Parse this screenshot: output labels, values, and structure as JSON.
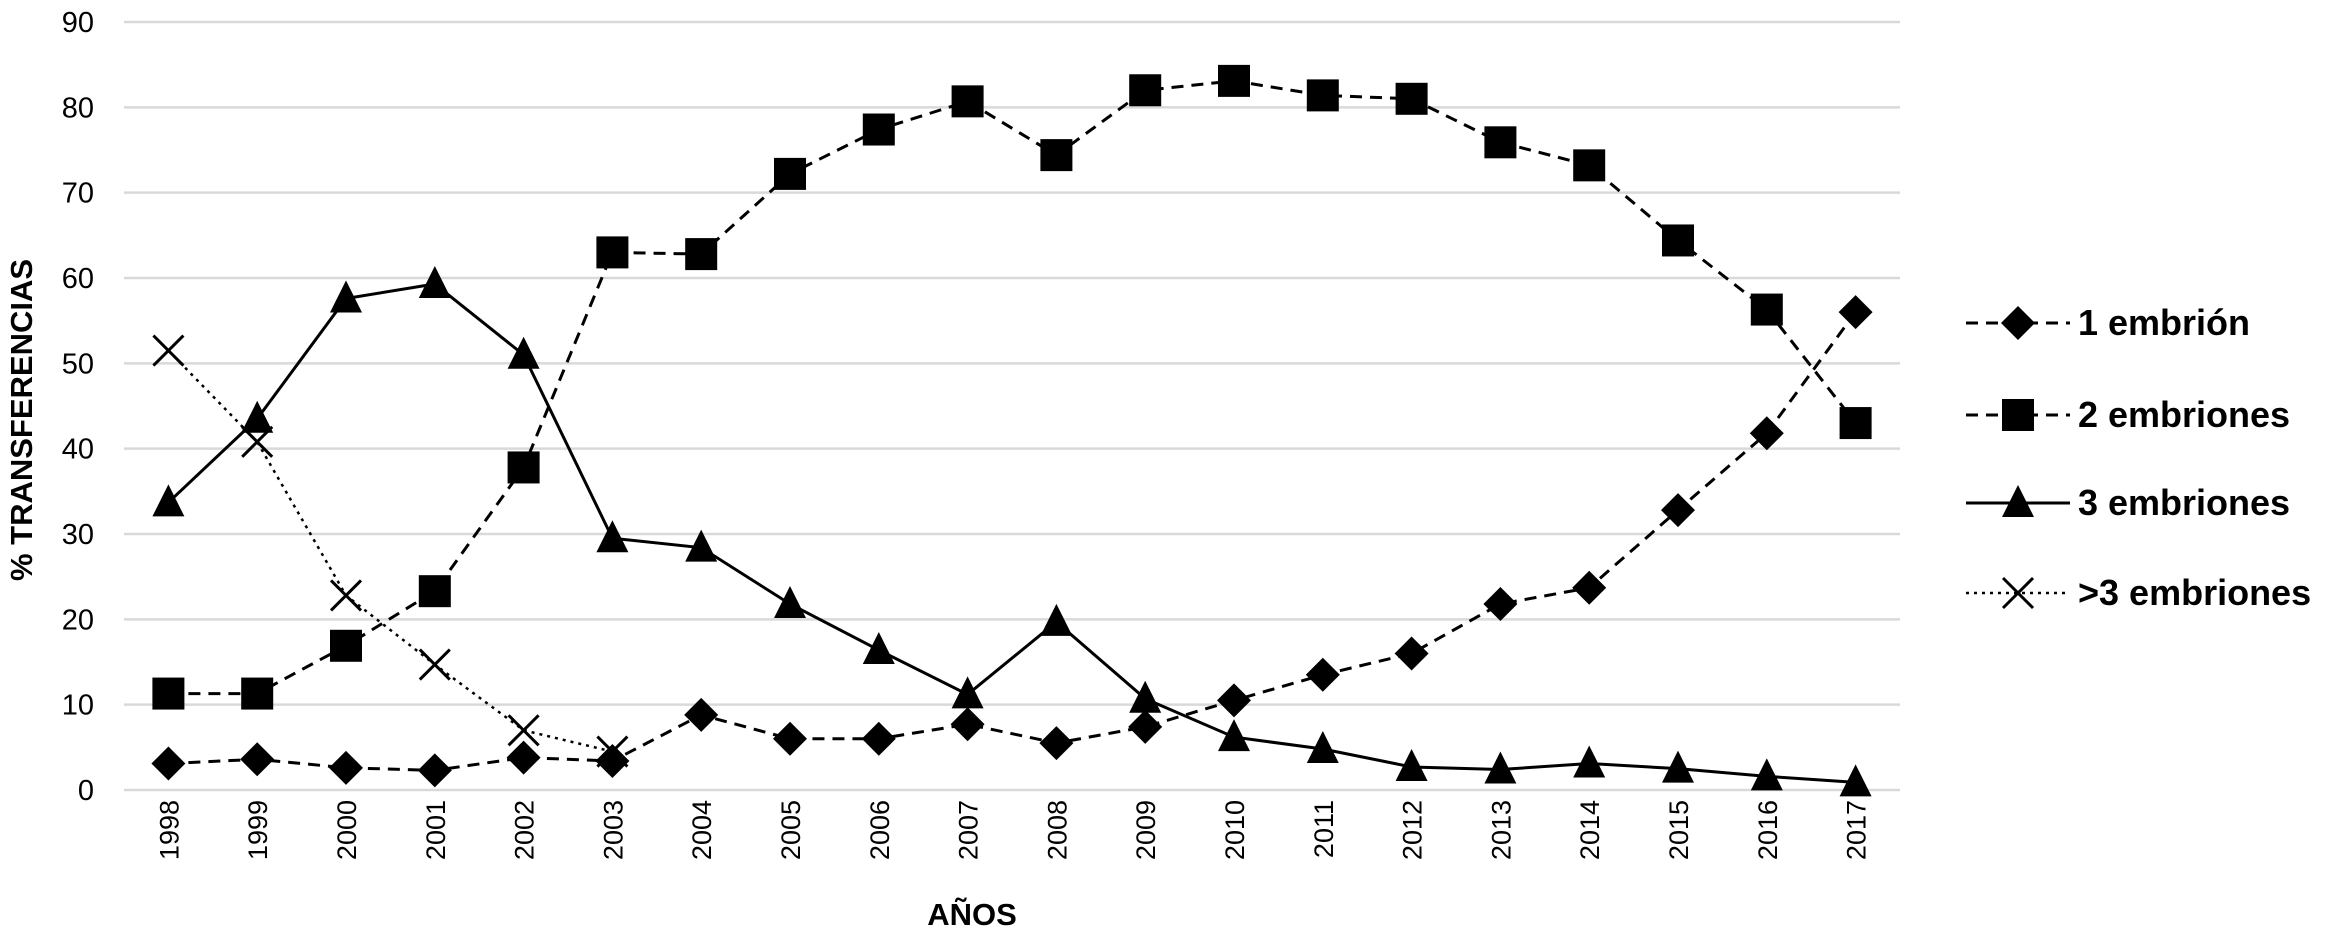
{
  "chart_data": {
    "type": "line",
    "title": "",
    "xlabel": "AÑOS",
    "ylabel": "% TRANSFERENCIAS",
    "ylim": [
      0,
      90
    ],
    "yticks": [
      0,
      10,
      20,
      30,
      40,
      50,
      60,
      70,
      80,
      90
    ],
    "grid": true,
    "legend": "right",
    "categories": [
      "1998",
      "1999",
      "2000",
      "2001",
      "2002",
      "2003",
      "2004",
      "2005",
      "2006",
      "2007",
      "2008",
      "2009",
      "2010",
      "2011",
      "2012",
      "2013",
      "2014",
      "2015",
      "2016",
      "2017"
    ],
    "series": [
      {
        "name": "1 embrión",
        "marker": "diamond",
        "line": "dashed",
        "values": [
          3.1,
          3.6,
          2.6,
          2.3,
          3.8,
          3.4,
          8.8,
          6.0,
          6.0,
          7.7,
          5.5,
          7.4,
          10.5,
          13.5,
          16.0,
          21.8,
          23.7,
          32.8,
          41.8,
          56.0
        ]
      },
      {
        "name": "2 embriones",
        "marker": "square",
        "line": "dashed",
        "values": [
          11.3,
          11.3,
          16.9,
          23.3,
          37.8,
          63.0,
          62.8,
          72.2,
          77.4,
          80.7,
          74.4,
          82.0,
          83.1,
          81.4,
          81.0,
          75.9,
          73.2,
          64.4,
          56.3,
          43.0
        ]
      },
      {
        "name": "3 embriones",
        "marker": "triangle",
        "line": "solid",
        "values": [
          33.7,
          43.5,
          57.6,
          59.3,
          51.0,
          29.5,
          28.4,
          21.8,
          16.4,
          11.2,
          19.7,
          10.7,
          6.2,
          4.8,
          2.7,
          2.4,
          3.1,
          2.5,
          1.6,
          0.9
        ]
      },
      {
        "name": ">3 embriones",
        "marker": "x",
        "line": "dotted",
        "values": [
          51.5,
          40.8,
          22.8,
          14.7,
          7.0,
          4.5,
          null,
          null,
          null,
          null,
          null,
          null,
          null,
          null,
          null,
          null,
          null,
          null,
          null,
          null
        ]
      }
    ]
  }
}
